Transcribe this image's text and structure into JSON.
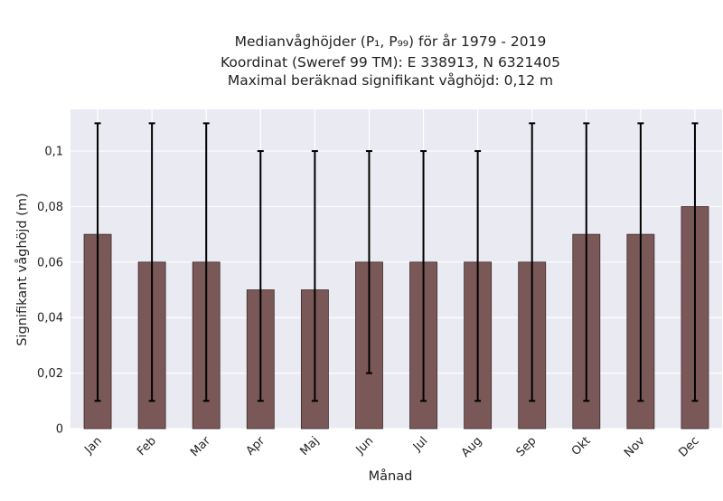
{
  "chart_data": {
    "type": "bar",
    "title_lines": [
      "Medianvåghöjder (P₁, P₉₉) för år 1979 - 2019",
      "Koordinat (Sweref 99 TM): E 338913, N 6321405",
      "Maximal beräknad signifikant våghöjd: 0,12 m"
    ],
    "xlabel": "Månad",
    "ylabel": "Signifikant våghöjd (m)",
    "categories": [
      "Jan",
      "Feb",
      "Mar",
      "Apr",
      "Maj",
      "Jun",
      "Jul",
      "Aug",
      "Sep",
      "Okt",
      "Nov",
      "Dec"
    ],
    "values": [
      0.07,
      0.06,
      0.06,
      0.05,
      0.05,
      0.06,
      0.06,
      0.06,
      0.06,
      0.07,
      0.07,
      0.08
    ],
    "error_low": [
      0.01,
      0.01,
      0.01,
      0.01,
      0.01,
      0.02,
      0.01,
      0.01,
      0.01,
      0.01,
      0.01,
      0.01
    ],
    "error_high": [
      0.11,
      0.11,
      0.11,
      0.1,
      0.1,
      0.1,
      0.1,
      0.1,
      0.11,
      0.11,
      0.11,
      0.11
    ],
    "ylim": [
      0,
      0.115
    ],
    "yticks": [
      0,
      0.02,
      0.04,
      0.06,
      0.08,
      0.1
    ],
    "ytick_labels": [
      "0",
      "0,02",
      "0,04",
      "0,06",
      "0,08",
      "0,1"
    ],
    "grid": true,
    "colors": {
      "bar_fill": "#7a5858",
      "bar_edge": "#3d2a2a",
      "plot_background": "#eaeaf2",
      "grid": "#ffffff",
      "errorbar": "#000000"
    }
  }
}
